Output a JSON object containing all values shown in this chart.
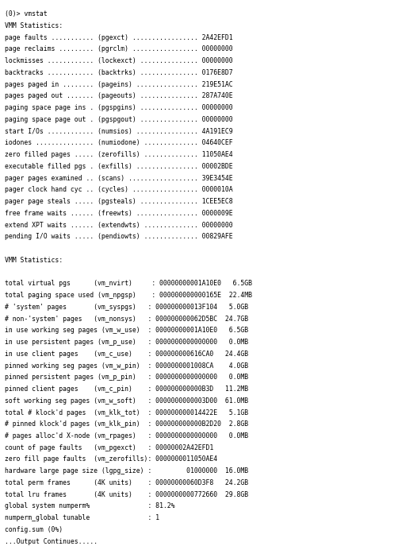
{
  "background_color": "#ffffff",
  "text_color": "#000000",
  "font_family": "monospace",
  "font_size": 5.85,
  "figsize": [
    5.07,
    6.92
  ],
  "dpi": 100,
  "lines": [
    "(0)> vmstat",
    "VMM Statistics:",
    "page faults ........... (pgexct) ................. 2A42EFD1",
    "page reclaims ......... (pgrclm) ................. 00000000",
    "lockmisses ............ (lockexct) ............... 00000000",
    "backtracks ............ (backtrks) ............... 0176E8D7",
    "pages paged in ........ (pageins) ................ 219E51AC",
    "pages paged out ....... (pageouts) ............... 287A740E",
    "paging space page ins . (pgspgins) ............... 00000000",
    "paging space page out . (pgspgout) ............... 00000000",
    "start I/Os ............ (numsios) ................ 4A191EC9",
    "iodones ............... (numiodone) .............. 04640CEF",
    "zero filled pages ..... (zerofills) .............. 11050AE4",
    "executable filled pgs . (exfills) ................ 00002BDE",
    "pager pages examined .. (scans) .................. 39E3454E",
    "pager clock hand cyc .. (cycles) ................. 0000010A",
    "pager page steals ..... (pgsteals) ............... 1CEE5EC8",
    "free frame waits ...... (freewts) ................ 0000009E",
    "extend XPT waits ...... (extendwts) .............. 00000000",
    "pending I/O waits ..... (pendiowts) .............. 00829AFE",
    "",
    "VMM Statistics:",
    "",
    "total virtual pgs      (vm_nvirt)     : 00000000001A10E0   6.5GB",
    "total paging space used (vm_npgsp)    : 000000000000165E  22.4MB",
    "# 'system' pages       (vm_syspgs)   : 000000000013F104   5.0GB",
    "# non-'system' pages   (vm_nonsys)   : 000000000062D5BC  24.7GB",
    "in use working seg pages (vm_w_use)  : 00000000001A10E0   6.5GB",
    "in use persistent pages (vm_p_use)   : 0000000000000000   0.0MB",
    "in use client pages    (vm_c_use)    : 000000000616CA0   24.4GB",
    "pinned working seg pages (vm_w_pin)  : 0000000001008CA    4.0GB",
    "pinned persistent pages (vm_p_pin)   : 0000000000000000   0.0MB",
    "pinned client pages    (vm_c_pin)    : 000000000000B3D   11.2MB",
    "soft working seg pages (vm_w_soft)   : 0000000000003D00  61.0MB",
    "total # klock'd pages  (vm_klk_tot)  : 000000000014422E   5.1GB",
    "# pinned klock'd pages (vm_klk_pin)  : 000000000000B2D20  2.8GB",
    "# pages alloc'd X-node (vm_rpages)   : 0000000000000000   0.0MB",
    "count of page faults   (vm_pgexct)   : 00000002A42EFD1",
    "zero fill page faults  (vm_zerofills): 0000000011050AE4",
    "hardware large page size (lgpg_size) :         01000000  16.0MB",
    "total perm frames      (4K units)    : 00000000060D3F8   24.2GB",
    "total lru frames       (4K units)    : 0000000000772660  29.8GB",
    "global system numperm%               : 81.2%",
    "numperm_global tunable               : 1",
    "config.sum (0%)",
    "...Output Continues....."
  ]
}
